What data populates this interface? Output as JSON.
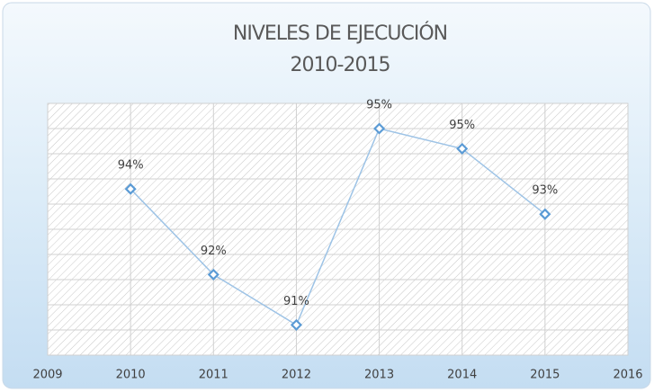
{
  "chart_data": {
    "type": "line",
    "title": "NIVELES DE EJECUCIÓN",
    "subtitle": "2010-2015",
    "x": [
      2010,
      2011,
      2012,
      2013,
      2014,
      2015
    ],
    "series": [
      {
        "color": "#9dc3e6",
        "marker_color": "#5b9bd5",
        "values": [
          93.7,
          92.0,
          91.0,
          94.9,
          94.5,
          93.2
        ],
        "value_labels": [
          "94%",
          "92%",
          "91%",
          "95%",
          "95%",
          "93%"
        ]
      }
    ],
    "xlim": [
      2009,
      2016
    ],
    "xticks": [
      2009,
      2010,
      2011,
      2012,
      2013,
      2014,
      2015,
      2016
    ],
    "ylim": [
      90.4,
      95.4
    ],
    "yticks": [
      90.4,
      90.9,
      91.4,
      91.9,
      92.4,
      92.9,
      93.4,
      93.9,
      94.4,
      94.9,
      95.4
    ],
    "grid": true
  }
}
